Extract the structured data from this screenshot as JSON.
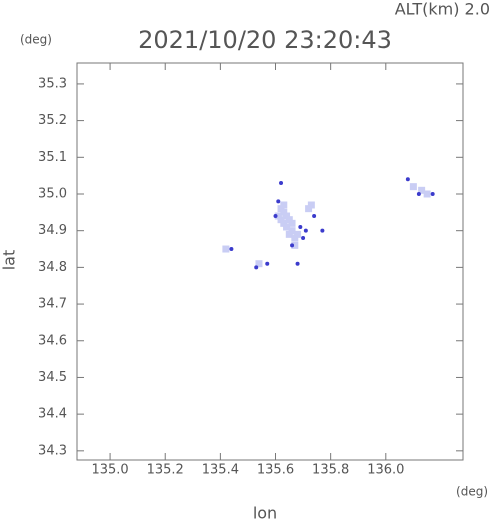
{
  "chart_data": {
    "type": "scatter",
    "title": "2021/10/20 23:20:43",
    "annotation": "ALT(km)  2.0",
    "y_unit": "(deg)",
    "x_unit": "(deg)",
    "x_label": "lon",
    "y_label": "lat",
    "xlim": [
      134.88,
      136.28
    ],
    "ylim": [
      34.275,
      35.357
    ],
    "xticks": [
      {
        "value": 135,
        "label": "135.0"
      },
      135.2,
      135.4,
      135.6,
      135.8,
      {
        "value": 136,
        "label": "136.0"
      }
    ],
    "yticks": [
      35.3,
      35.2,
      35.1,
      {
        "value": 35,
        "label": "35.0"
      },
      34.9,
      34.8,
      34.7,
      34.6,
      34.5,
      34.4,
      34.3
    ],
    "series": [
      {
        "color": "#c9cdf4",
        "marker": "square",
        "size": 7,
        "x": [
          135.62,
          135.63,
          135.64,
          135.62,
          135.63,
          135.65,
          135.64,
          135.66,
          135.65,
          135.67,
          135.68,
          135.63,
          135.61,
          135.66,
          135.72,
          135.73,
          136.13,
          136.15,
          136.1,
          135.54,
          135.42,
          135.67
        ],
        "y": [
          34.96,
          34.95,
          34.94,
          34.93,
          34.92,
          34.93,
          34.91,
          34.9,
          34.89,
          34.88,
          34.89,
          34.97,
          34.94,
          34.92,
          34.96,
          34.97,
          35.01,
          35.0,
          35.02,
          34.81,
          34.85,
          34.86
        ]
      },
      {
        "color": "#3b3bcc",
        "marker": "circle",
        "size": 2,
        "x": [
          135.62,
          135.61,
          135.69,
          135.71,
          135.7,
          135.74,
          135.77,
          135.66,
          135.68,
          136.08,
          136.12,
          136.17,
          135.53,
          135.57,
          135.44,
          135.6
        ],
        "y": [
          35.03,
          34.98,
          34.91,
          34.9,
          34.88,
          34.94,
          34.9,
          34.86,
          34.81,
          35.04,
          35.0,
          35.0,
          34.8,
          34.81,
          34.85,
          34.94
        ]
      }
    ]
  }
}
